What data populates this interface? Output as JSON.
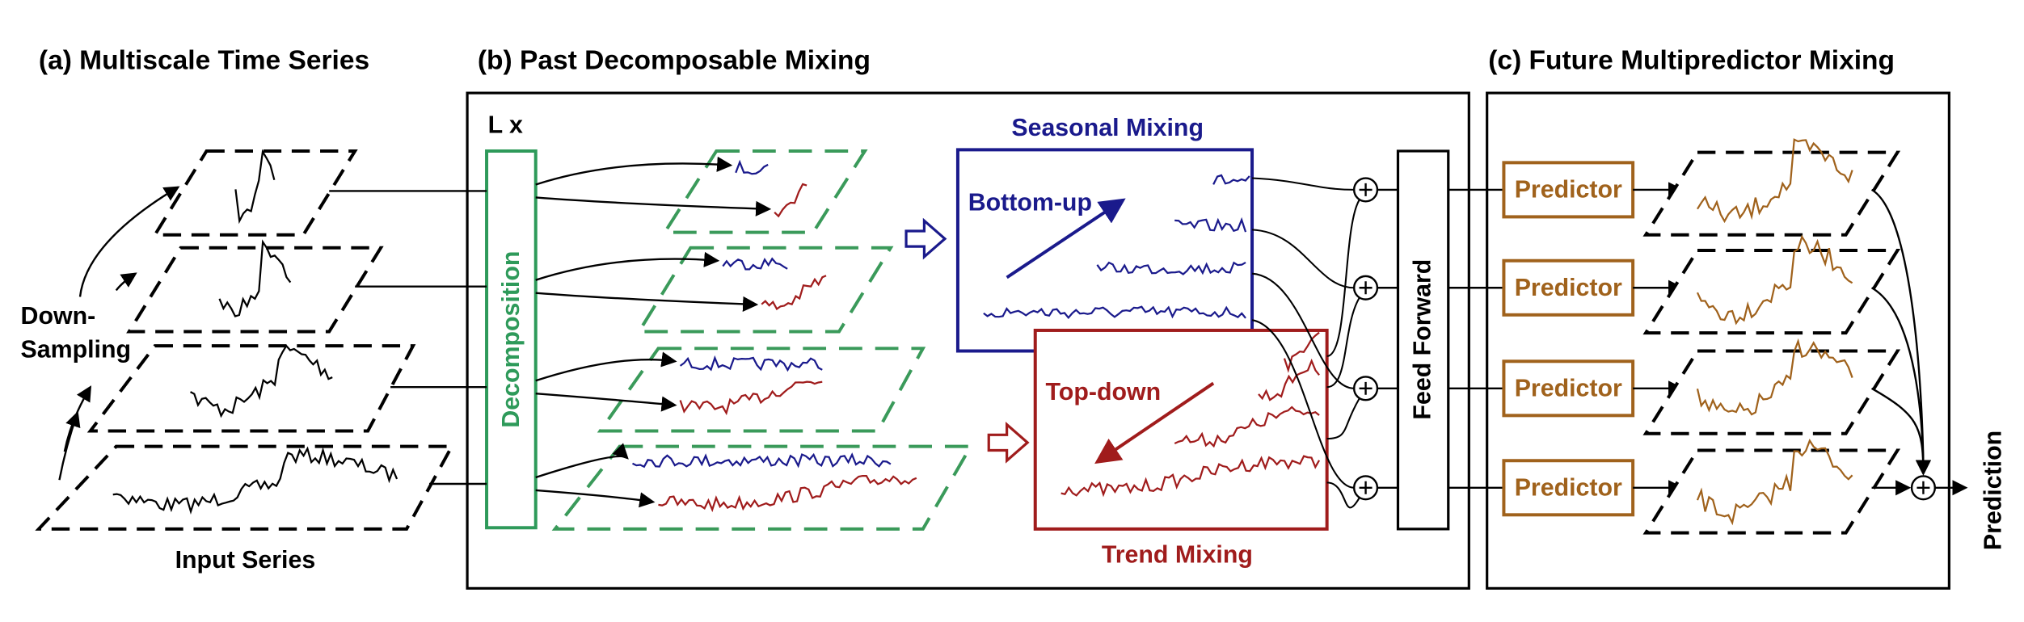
{
  "panels": {
    "a": {
      "title": "(a) Multiscale Time Series",
      "down_sampling": [
        "Down-",
        "Sampling"
      ],
      "input": "Input Series"
    },
    "b": {
      "title": "(b) Past Decomposable Mixing",
      "layers": "L x",
      "decomposition": "Decomposition",
      "seasonal": {
        "title": "Seasonal Mixing",
        "direction": "Bottom-up"
      },
      "trend": {
        "title": "Trend Mixing",
        "direction": "Top-down"
      },
      "feed_forward": "Feed Forward"
    },
    "c": {
      "title": "(c) Future Multipredictor Mixing",
      "predictors": [
        "Predictor",
        "Predictor",
        "Predictor",
        "Predictor"
      ],
      "output": "Prediction"
    }
  }
}
